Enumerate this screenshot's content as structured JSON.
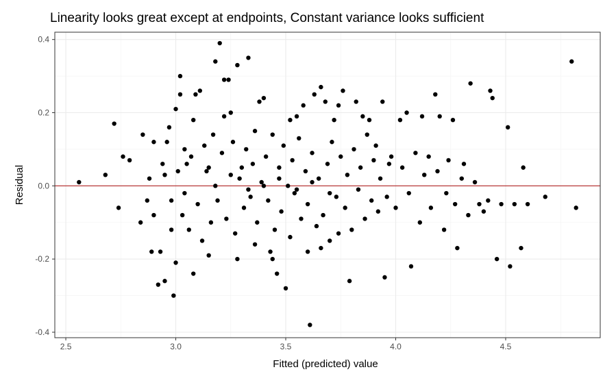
{
  "chart_data": {
    "type": "scatter",
    "title": "Linearity looks great except at endpoints, Constant variance looks sufficient",
    "xlabel": "Fitted (predicted) value",
    "ylabel": "Residual",
    "xlim": [
      2.45,
      4.93
    ],
    "ylim": [
      -0.415,
      0.42
    ],
    "x_ticks": [
      2.5,
      3.0,
      3.5,
      4.0,
      4.5
    ],
    "x_tick_labels": [
      "2.5",
      "3.0",
      "3.5",
      "4.0",
      "4.5"
    ],
    "y_ticks": [
      -0.4,
      -0.2,
      0.0,
      0.2,
      0.4
    ],
    "y_tick_labels": [
      "-0.4",
      "-0.2",
      "0.0",
      "0.2",
      "0.4"
    ],
    "grid": true,
    "theme": "bw",
    "reference_line": {
      "y": 0.0,
      "color": "#b22222"
    },
    "point_color": "#000000",
    "series": [
      {
        "points": [
          [
            2.56,
            0.01
          ],
          [
            2.68,
            0.03
          ],
          [
            2.72,
            0.17
          ],
          [
            2.74,
            -0.06
          ],
          [
            2.76,
            0.08
          ],
          [
            2.79,
            0.07
          ],
          [
            2.85,
            0.14
          ],
          [
            2.84,
            -0.1
          ],
          [
            2.87,
            -0.04
          ],
          [
            2.88,
            0.02
          ],
          [
            2.89,
            -0.18
          ],
          [
            2.9,
            0.12
          ],
          [
            2.92,
            -0.27
          ],
          [
            2.93,
            -0.18
          ],
          [
            2.95,
            -0.26
          ],
          [
            2.96,
            0.12
          ],
          [
            2.97,
            0.16
          ],
          [
            2.99,
            -0.3
          ],
          [
            3.0,
            0.21
          ],
          [
            3.0,
            -0.21
          ],
          [
            3.02,
            0.3
          ],
          [
            3.02,
            0.25
          ],
          [
            3.04,
            0.1
          ],
          [
            3.05,
            0.06
          ],
          [
            3.08,
            -0.24
          ],
          [
            3.09,
            0.25
          ],
          [
            3.11,
            0.26
          ],
          [
            3.13,
            0.11
          ],
          [
            3.15,
            0.05
          ],
          [
            3.18,
            0.34
          ],
          [
            3.2,
            0.39
          ],
          [
            3.22,
            0.29
          ],
          [
            3.24,
            0.29
          ],
          [
            3.25,
            0.2
          ],
          [
            3.28,
            0.33
          ],
          [
            3.3,
            0.05
          ],
          [
            3.33,
            0.35
          ],
          [
            3.36,
            0.15
          ],
          [
            3.38,
            0.23
          ],
          [
            3.4,
            0.24
          ],
          [
            3.43,
            -0.18
          ],
          [
            3.46,
            -0.24
          ],
          [
            3.5,
            -0.28
          ],
          [
            3.55,
            0.19
          ],
          [
            3.58,
            0.22
          ],
          [
            3.61,
            -0.38
          ],
          [
            3.63,
            0.25
          ],
          [
            3.66,
            0.27
          ],
          [
            3.68,
            0.23
          ],
          [
            3.72,
            0.18
          ],
          [
            3.74,
            0.22
          ],
          [
            3.76,
            0.26
          ],
          [
            3.79,
            -0.26
          ],
          [
            3.82,
            0.23
          ],
          [
            3.85,
            0.19
          ],
          [
            3.88,
            0.18
          ],
          [
            3.91,
            0.11
          ],
          [
            3.94,
            0.23
          ],
          [
            3.95,
            -0.25
          ],
          [
            3.98,
            0.08
          ],
          [
            4.02,
            0.18
          ],
          [
            4.05,
            0.2
          ],
          [
            4.07,
            -0.22
          ],
          [
            4.12,
            0.19
          ],
          [
            4.15,
            0.08
          ],
          [
            4.18,
            0.25
          ],
          [
            4.2,
            0.19
          ],
          [
            4.23,
            -0.02
          ],
          [
            4.26,
            0.18
          ],
          [
            4.28,
            -0.17
          ],
          [
            4.31,
            0.06
          ],
          [
            4.34,
            0.28
          ],
          [
            4.38,
            -0.05
          ],
          [
            4.43,
            0.26
          ],
          [
            4.44,
            0.24
          ],
          [
            4.46,
            -0.2
          ],
          [
            4.51,
            0.16
          ],
          [
            4.52,
            -0.22
          ],
          [
            4.54,
            -0.05
          ],
          [
            4.57,
            -0.17
          ],
          [
            4.58,
            0.05
          ],
          [
            4.6,
            -0.05
          ],
          [
            4.68,
            -0.03
          ],
          [
            4.8,
            0.34
          ],
          [
            4.82,
            -0.06
          ],
          [
            2.95,
            0.03
          ],
          [
            2.98,
            -0.04
          ],
          [
            3.03,
            -0.08
          ],
          [
            3.06,
            -0.12
          ],
          [
            3.07,
            0.08
          ],
          [
            3.1,
            -0.05
          ],
          [
            3.12,
            -0.15
          ],
          [
            3.14,
            0.04
          ],
          [
            3.16,
            -0.1
          ],
          [
            3.17,
            0.14
          ],
          [
            3.19,
            -0.04
          ],
          [
            3.21,
            0.09
          ],
          [
            3.23,
            -0.09
          ],
          [
            3.26,
            0.12
          ],
          [
            3.27,
            -0.13
          ],
          [
            3.29,
            0.02
          ],
          [
            3.31,
            -0.06
          ],
          [
            3.32,
            0.1
          ],
          [
            3.34,
            -0.03
          ],
          [
            3.35,
            0.06
          ],
          [
            3.37,
            -0.1
          ],
          [
            3.39,
            0.01
          ],
          [
            3.41,
            0.08
          ],
          [
            3.42,
            -0.04
          ],
          [
            3.44,
            0.14
          ],
          [
            3.45,
            -0.12
          ],
          [
            3.47,
            0.05
          ],
          [
            3.48,
            -0.07
          ],
          [
            3.49,
            0.11
          ],
          [
            3.51,
            0.0
          ],
          [
            3.52,
            -0.14
          ],
          [
            3.53,
            0.07
          ],
          [
            3.54,
            -0.02
          ],
          [
            3.56,
            0.13
          ],
          [
            3.57,
            -0.09
          ],
          [
            3.59,
            0.04
          ],
          [
            3.6,
            -0.05
          ],
          [
            3.62,
            0.09
          ],
          [
            3.64,
            -0.11
          ],
          [
            3.65,
            0.02
          ],
          [
            3.67,
            -0.08
          ],
          [
            3.69,
            0.06
          ],
          [
            3.7,
            -0.15
          ],
          [
            3.71,
            0.12
          ],
          [
            3.73,
            -0.03
          ],
          [
            3.75,
            0.08
          ],
          [
            3.77,
            -0.06
          ],
          [
            3.78,
            0.03
          ],
          [
            3.8,
            -0.12
          ],
          [
            3.81,
            0.1
          ],
          [
            3.83,
            -0.01
          ],
          [
            3.84,
            0.05
          ],
          [
            3.86,
            -0.09
          ],
          [
            3.87,
            0.14
          ],
          [
            3.89,
            -0.04
          ],
          [
            3.9,
            0.07
          ],
          [
            3.92,
            -0.07
          ],
          [
            3.93,
            0.02
          ],
          [
            3.96,
            -0.03
          ],
          [
            3.97,
            0.06
          ],
          [
            4.0,
            -0.06
          ],
          [
            4.03,
            0.05
          ],
          [
            4.06,
            -0.02
          ],
          [
            4.09,
            0.09
          ],
          [
            4.11,
            -0.1
          ],
          [
            4.13,
            0.03
          ],
          [
            4.16,
            -0.06
          ],
          [
            4.19,
            0.04
          ],
          [
            4.22,
            -0.12
          ],
          [
            4.24,
            0.07
          ],
          [
            4.27,
            -0.05
          ],
          [
            4.3,
            0.02
          ],
          [
            4.33,
            -0.08
          ],
          [
            4.36,
            0.01
          ],
          [
            4.4,
            -0.07
          ],
          [
            4.42,
            -0.04
          ],
          [
            4.48,
            -0.05
          ],
          [
            3.18,
            0.0
          ],
          [
            3.25,
            0.03
          ],
          [
            3.33,
            -0.01
          ],
          [
            3.4,
            0.0
          ],
          [
            3.47,
            0.02
          ],
          [
            3.55,
            -0.01
          ],
          [
            3.62,
            0.01
          ],
          [
            3.7,
            -0.02
          ],
          [
            3.28,
            -0.2
          ],
          [
            3.36,
            -0.16
          ],
          [
            3.44,
            -0.2
          ],
          [
            3.52,
            0.18
          ],
          [
            3.6,
            -0.18
          ],
          [
            3.66,
            -0.17
          ],
          [
            3.74,
            -0.13
          ],
          [
            3.08,
            0.18
          ],
          [
            3.15,
            -0.19
          ],
          [
            3.22,
            0.19
          ],
          [
            2.9,
            -0.08
          ],
          [
            2.94,
            0.06
          ],
          [
            2.98,
            -0.12
          ],
          [
            3.01,
            0.04
          ],
          [
            3.04,
            -0.02
          ]
        ]
      }
    ]
  }
}
